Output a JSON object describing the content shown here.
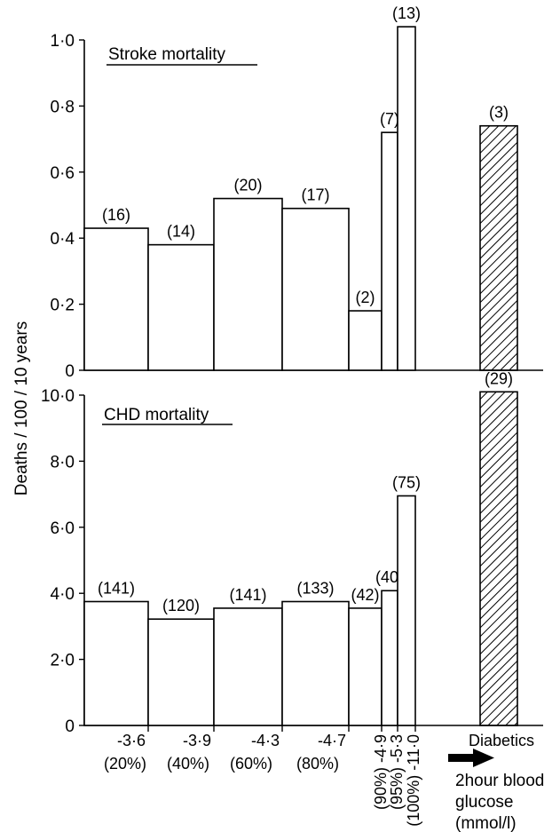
{
  "ylabel": "Deaths / 100 / 10 years",
  "chart_data": [
    {
      "type": "bar",
      "title": "Stroke mortality",
      "ylim": [
        0,
        1.0
      ],
      "yticks": [
        {
          "value": 0,
          "label": "0"
        },
        {
          "value": 0.2,
          "label": "0·2"
        },
        {
          "value": 0.4,
          "label": "0·4"
        },
        {
          "value": 0.6,
          "label": "0·6"
        },
        {
          "value": 0.8,
          "label": "0·8"
        },
        {
          "value": 1.0,
          "label": "1·0"
        }
      ],
      "bars": [
        {
          "group": "≤3·6",
          "value": 0.43,
          "label": "(16)"
        },
        {
          "group": "≤3·9",
          "value": 0.38,
          "label": "(14)"
        },
        {
          "group": "≤4·3",
          "value": 0.52,
          "label": "(20)"
        },
        {
          "group": "≤4·7",
          "value": 0.49,
          "label": "(17)"
        },
        {
          "group": "≤4·9",
          "value": 0.18,
          "label": "(2)"
        },
        {
          "group": "≤5·3",
          "value": 0.72,
          "label": "(7)"
        },
        {
          "group": "≤11·0",
          "value": 1.04,
          "label": "(13)"
        },
        {
          "group": "Diabetics",
          "value": 0.74,
          "label": "(3)",
          "hatched": true
        }
      ]
    },
    {
      "type": "bar",
      "title": "CHD mortality",
      "ylim": [
        0,
        10.0
      ],
      "yticks": [
        {
          "value": 0,
          "label": "0"
        },
        {
          "value": 2,
          "label": "2·0"
        },
        {
          "value": 4,
          "label": "4·0"
        },
        {
          "value": 6,
          "label": "6·0"
        },
        {
          "value": 8,
          "label": "8·0"
        },
        {
          "value": 10,
          "label": "10·0"
        }
      ],
      "bars": [
        {
          "group": "≤3·6",
          "value": 3.75,
          "label": "(141)"
        },
        {
          "group": "≤3·9",
          "value": 3.22,
          "label": "(120)"
        },
        {
          "group": "≤4·3",
          "value": 3.55,
          "label": "(141)"
        },
        {
          "group": "≤4·7",
          "value": 3.75,
          "label": "(133)"
        },
        {
          "group": "≤4·9",
          "value": 3.55,
          "label": "(42)"
        },
        {
          "group": "≤5·3",
          "value": 4.08,
          "label": "(40)"
        },
        {
          "group": "≤11·0",
          "value": 6.95,
          "label": "(75)"
        },
        {
          "group": "Diabetics",
          "value": 10.1,
          "label": "(29)",
          "hatched": true
        }
      ]
    }
  ],
  "x_axis": {
    "labels": [
      "-3·6",
      "-3·9",
      "-4·3",
      "-4·7"
    ],
    "percents": [
      "(20%)",
      "(40%)",
      "(60%)",
      "(80%)"
    ],
    "rotated": [
      "(90%) -4·9",
      "(95%) -5·3",
      "(100%) -11·0"
    ],
    "diabetics_label": "Diabetics",
    "axis_title_lines": [
      "2hour blood",
      "glucose",
      "(mmol/l)"
    ]
  }
}
